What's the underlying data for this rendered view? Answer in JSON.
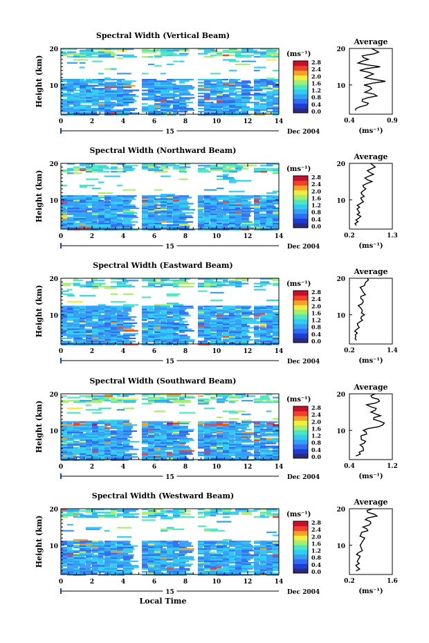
{
  "chart_data": [
    {
      "type": "heatmap",
      "title": "Spectral Width (Vertical Beam)",
      "ylabel": "Height (km)",
      "xlabel": "",
      "day_label": "15",
      "date_label": "Dec 2004",
      "xlim": [
        0,
        14
      ],
      "ylim": [
        2,
        20
      ],
      "x_ticks": [
        "0",
        "2",
        "4",
        "6",
        "8",
        "10",
        "12",
        "14"
      ],
      "y_ticks": [
        "10",
        "20"
      ],
      "data_gaps": [
        [
          4.55,
          4.85
        ],
        [
          8.2,
          8.5
        ],
        [
          12.0,
          12.3
        ]
      ],
      "colorbar": {
        "unit": "(ms⁻¹)",
        "ticks": [
          "0.0",
          "0.4",
          "0.8",
          "1.2",
          "1.6",
          "2.0",
          "2.4",
          "2.8"
        ],
        "range": [
          0,
          3.0
        ]
      },
      "average_profile": {
        "title": "Average",
        "unit": "(ms⁻¹)",
        "xlim": [
          0.4,
          0.9
        ],
        "x_ticks": [
          "0.4",
          "0.9"
        ],
        "y_ticks": [
          "10",
          "20"
        ],
        "height": [
          3,
          4,
          5,
          6,
          7,
          8,
          9,
          10,
          11,
          12,
          13,
          14,
          15,
          16,
          17,
          18,
          19,
          20
        ],
        "width": [
          0.47,
          0.52,
          0.62,
          0.55,
          0.72,
          0.58,
          0.66,
          0.57,
          0.82,
          0.58,
          0.68,
          0.52,
          0.76,
          0.5,
          0.62,
          0.55,
          0.74,
          0.66
        ]
      }
    },
    {
      "type": "heatmap",
      "title": "Spectral Width (Northward Beam)",
      "ylabel": "Height (km)",
      "xlabel": "",
      "day_label": "15",
      "date_label": "Dec 2004",
      "xlim": [
        0,
        14
      ],
      "ylim": [
        2,
        20
      ],
      "x_ticks": [
        "0",
        "2",
        "4",
        "6",
        "8",
        "10",
        "12",
        "14"
      ],
      "y_ticks": [
        "10",
        "20"
      ],
      "data_gaps": [
        [
          4.55,
          4.85
        ],
        [
          8.2,
          8.5
        ],
        [
          12.0,
          12.3
        ]
      ],
      "colorbar": {
        "unit": "(ms⁻¹)",
        "ticks": [
          "0.0",
          "0.4",
          "0.8",
          "1.2",
          "1.6",
          "2.0",
          "2.4",
          "2.8"
        ],
        "range": [
          0,
          3.0
        ]
      },
      "average_profile": {
        "title": "Average",
        "unit": "(ms⁻¹)",
        "xlim": [
          0.2,
          1.3
        ],
        "x_ticks": [
          "0.2",
          "1.3"
        ],
        "y_ticks": [
          "10",
          "20"
        ],
        "height": [
          3,
          4,
          5,
          6,
          7,
          8,
          9,
          10,
          11,
          12,
          13,
          14,
          15,
          16,
          17,
          18,
          19,
          20
        ],
        "width": [
          0.38,
          0.42,
          0.44,
          0.4,
          0.43,
          0.46,
          0.48,
          0.52,
          0.58,
          0.5,
          0.62,
          0.55,
          0.78,
          0.6,
          0.82,
          0.66,
          0.86,
          0.74
        ]
      }
    },
    {
      "type": "heatmap",
      "title": "Spectral Width (Eastward Beam)",
      "ylabel": "Height (km)",
      "xlabel": "",
      "day_label": "15",
      "date_label": "Dec 2004",
      "xlim": [
        0,
        14
      ],
      "ylim": [
        2,
        20
      ],
      "x_ticks": [
        "0",
        "2",
        "4",
        "6",
        "8",
        "10",
        "12",
        "14"
      ],
      "y_ticks": [
        "10",
        "20"
      ],
      "data_gaps": [
        [
          4.55,
          4.85
        ],
        [
          8.2,
          8.5
        ],
        [
          12.0,
          12.3
        ]
      ],
      "colorbar": {
        "unit": "(ms⁻¹)",
        "ticks": [
          "0.0",
          "0.4",
          "0.8",
          "1.2",
          "1.6",
          "2.0",
          "2.4",
          "2.8"
        ],
        "range": [
          0,
          3.0
        ]
      },
      "average_profile": {
        "title": "Average",
        "unit": "(ms⁻¹)",
        "xlim": [
          0.2,
          1.4
        ],
        "x_ticks": [
          "0.2",
          "1.4"
        ],
        "y_ticks": [
          "10",
          "20"
        ],
        "height": [
          3,
          4,
          5,
          6,
          7,
          8,
          9,
          10,
          11,
          12,
          13,
          14,
          15,
          16,
          17,
          18,
          19,
          20
        ],
        "width": [
          0.4,
          0.38,
          0.42,
          0.4,
          0.44,
          0.48,
          0.52,
          0.62,
          0.56,
          0.5,
          0.55,
          0.58,
          0.52,
          0.6,
          0.54,
          0.62,
          0.66,
          0.7
        ]
      }
    },
    {
      "type": "heatmap",
      "title": "Spectral Width (Southward Beam)",
      "ylabel": "Height (km)",
      "xlabel": "",
      "day_label": "15",
      "date_label": "Dec 2004",
      "xlim": [
        0,
        14
      ],
      "ylim": [
        2,
        20
      ],
      "x_ticks": [
        "0",
        "2",
        "4",
        "6",
        "8",
        "10",
        "12",
        "14"
      ],
      "y_ticks": [
        "10",
        "20"
      ],
      "data_gaps": [
        [
          4.55,
          4.85
        ],
        [
          8.2,
          8.5
        ],
        [
          12.0,
          12.3
        ]
      ],
      "colorbar": {
        "unit": "(ms⁻¹)",
        "ticks": [
          "0.0",
          "0.4",
          "0.8",
          "1.2",
          "1.6",
          "2.0",
          "2.4",
          "2.8"
        ],
        "range": [
          0,
          3.0
        ]
      },
      "average_profile": {
        "title": "Average",
        "unit": "(ms⁻¹)",
        "xlim": [
          0.4,
          1.2
        ],
        "x_ticks": [
          "0.4",
          "1.2"
        ],
        "y_ticks": [
          "10",
          "20"
        ],
        "height": [
          3,
          4,
          5,
          6,
          7,
          8,
          9,
          10,
          11,
          12,
          13,
          14,
          15,
          16,
          17,
          18,
          19,
          20
        ],
        "width": [
          0.52,
          0.58,
          0.66,
          0.6,
          0.7,
          0.62,
          0.72,
          0.66,
          0.95,
          1.05,
          0.85,
          0.98,
          0.8,
          0.9,
          0.72,
          0.96,
          0.82,
          0.88
        ]
      }
    },
    {
      "type": "heatmap",
      "title": "Spectral Width (Westward Beam)",
      "ylabel": "Height (km)",
      "xlabel": "Local Time",
      "day_label": "15",
      "date_label": "Dec 2004",
      "xlim": [
        0,
        14
      ],
      "ylim": [
        2,
        20
      ],
      "x_ticks": [
        "0",
        "2",
        "4",
        "6",
        "8",
        "10",
        "12",
        "14"
      ],
      "y_ticks": [
        "10",
        "20"
      ],
      "data_gaps": [
        [
          4.55,
          4.85
        ],
        [
          8.2,
          8.5
        ],
        [
          12.0,
          12.3
        ]
      ],
      "colorbar": {
        "unit": "(ms⁻¹)",
        "ticks": [
          "0.0",
          "0.4",
          "0.8",
          "1.2",
          "1.6",
          "2.0",
          "2.4",
          "2.8"
        ],
        "range": [
          0,
          3.0
        ]
      },
      "average_profile": {
        "title": "Average",
        "unit": "(ms⁻¹)",
        "xlim": [
          0.2,
          1.6
        ],
        "x_ticks": [
          "0.2",
          "1.6"
        ],
        "y_ticks": [
          "10",
          "20"
        ],
        "height": [
          3,
          4,
          5,
          6,
          7,
          8,
          9,
          10,
          11,
          12,
          13,
          14,
          15,
          16,
          17,
          18,
          19,
          20
        ],
        "width": [
          0.42,
          0.46,
          0.52,
          0.48,
          0.55,
          0.5,
          0.6,
          0.55,
          0.62,
          0.7,
          0.58,
          0.8,
          0.64,
          0.9,
          0.72,
          1.1,
          0.8,
          0.95
        ]
      }
    }
  ],
  "colors": {
    "colormap": [
      "#2a2a80",
      "#1e3cd6",
      "#2f6ef2",
      "#33a0f5",
      "#30cdf0",
      "#4de6c2",
      "#a6ef6e",
      "#f3ee3e",
      "#f9a02a",
      "#f4402a",
      "#c8102a"
    ],
    "background": "#ffffff",
    "axis": "#000000",
    "day_marker": "#1a3ad0"
  }
}
